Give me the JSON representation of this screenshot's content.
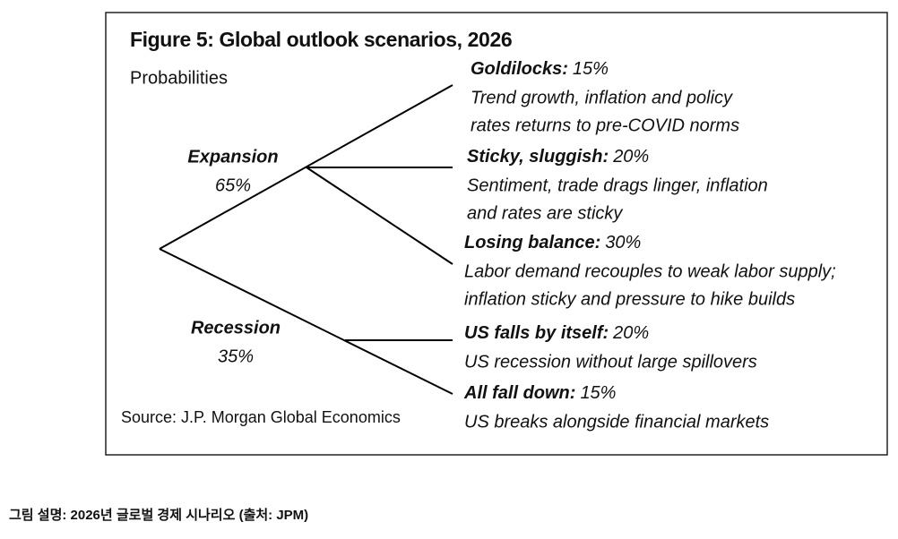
{
  "figure": {
    "title": "Figure 5: Global outlook scenarios, 2026",
    "subtitle": "Probabilities",
    "branches": [
      {
        "label": "Expansion",
        "probability": "65%",
        "leaves": [
          {
            "name": "Goldilocks:",
            "probability": "15%",
            "description": [
              "Trend growth, inflation and policy",
              "rates returns to pre-COVID norms"
            ]
          },
          {
            "name": "Sticky, sluggish:",
            "probability": "20%",
            "description": [
              "Sentiment, trade drags linger, inflation",
              "and rates are sticky"
            ]
          },
          {
            "name": "Losing balance:",
            "probability": "30%",
            "description": [
              "Labor demand recouples to weak labor supply;",
              "inflation sticky and pressure to hike builds"
            ]
          }
        ]
      },
      {
        "label": "Recession",
        "probability": "35%",
        "leaves": [
          {
            "name": "US falls by itself:",
            "probability": "20%",
            "description": [
              "US recession without large spillovers"
            ]
          },
          {
            "name": "All fall down:",
            "probability": "15%",
            "description": [
              "US breaks alongside financial markets"
            ]
          }
        ]
      }
    ],
    "source": "Source: J.P. Morgan Global Economics"
  },
  "caption": "그림 설명: 2026년 글로벌 경제 시나리오 (출처: JPM)"
}
